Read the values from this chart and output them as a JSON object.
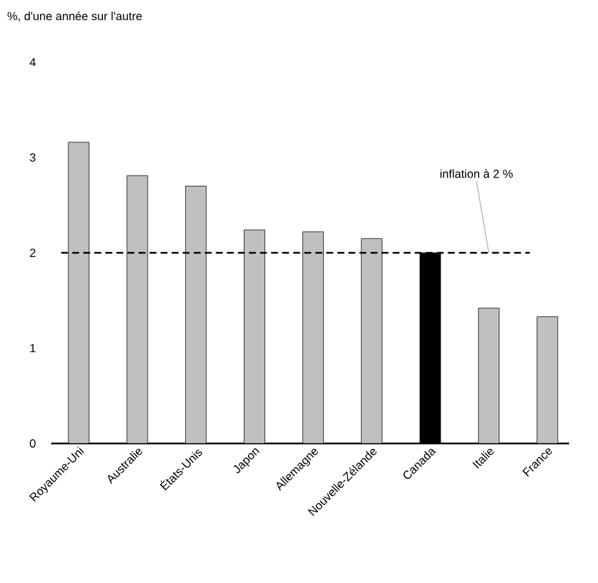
{
  "chart_data": {
    "type": "bar",
    "ylabel": "%, d'une année sur l'autre",
    "categories": [
      "Royaume-Uni",
      "Australie",
      "États-Unis",
      "Japon",
      "Allemagne",
      "Nouvelle-Zélande",
      "Canada",
      "Italie",
      "France"
    ],
    "values": [
      3.16,
      2.81,
      2.7,
      2.24,
      2.22,
      2.15,
      2.0,
      1.42,
      1.33
    ],
    "colors": [
      "#c0c0c0",
      "#c0c0c0",
      "#c0c0c0",
      "#c0c0c0",
      "#c0c0c0",
      "#c0c0c0",
      "#000000",
      "#c0c0c0",
      "#c0c0c0"
    ],
    "ylim": [
      0,
      4
    ],
    "yticks": [
      0,
      1,
      2,
      3,
      4
    ],
    "ref_lines": [
      {
        "axis": "y",
        "value": 2,
        "label": "inflation à 2 %",
        "color": "#000000",
        "line_style": "dashed"
      }
    ]
  }
}
